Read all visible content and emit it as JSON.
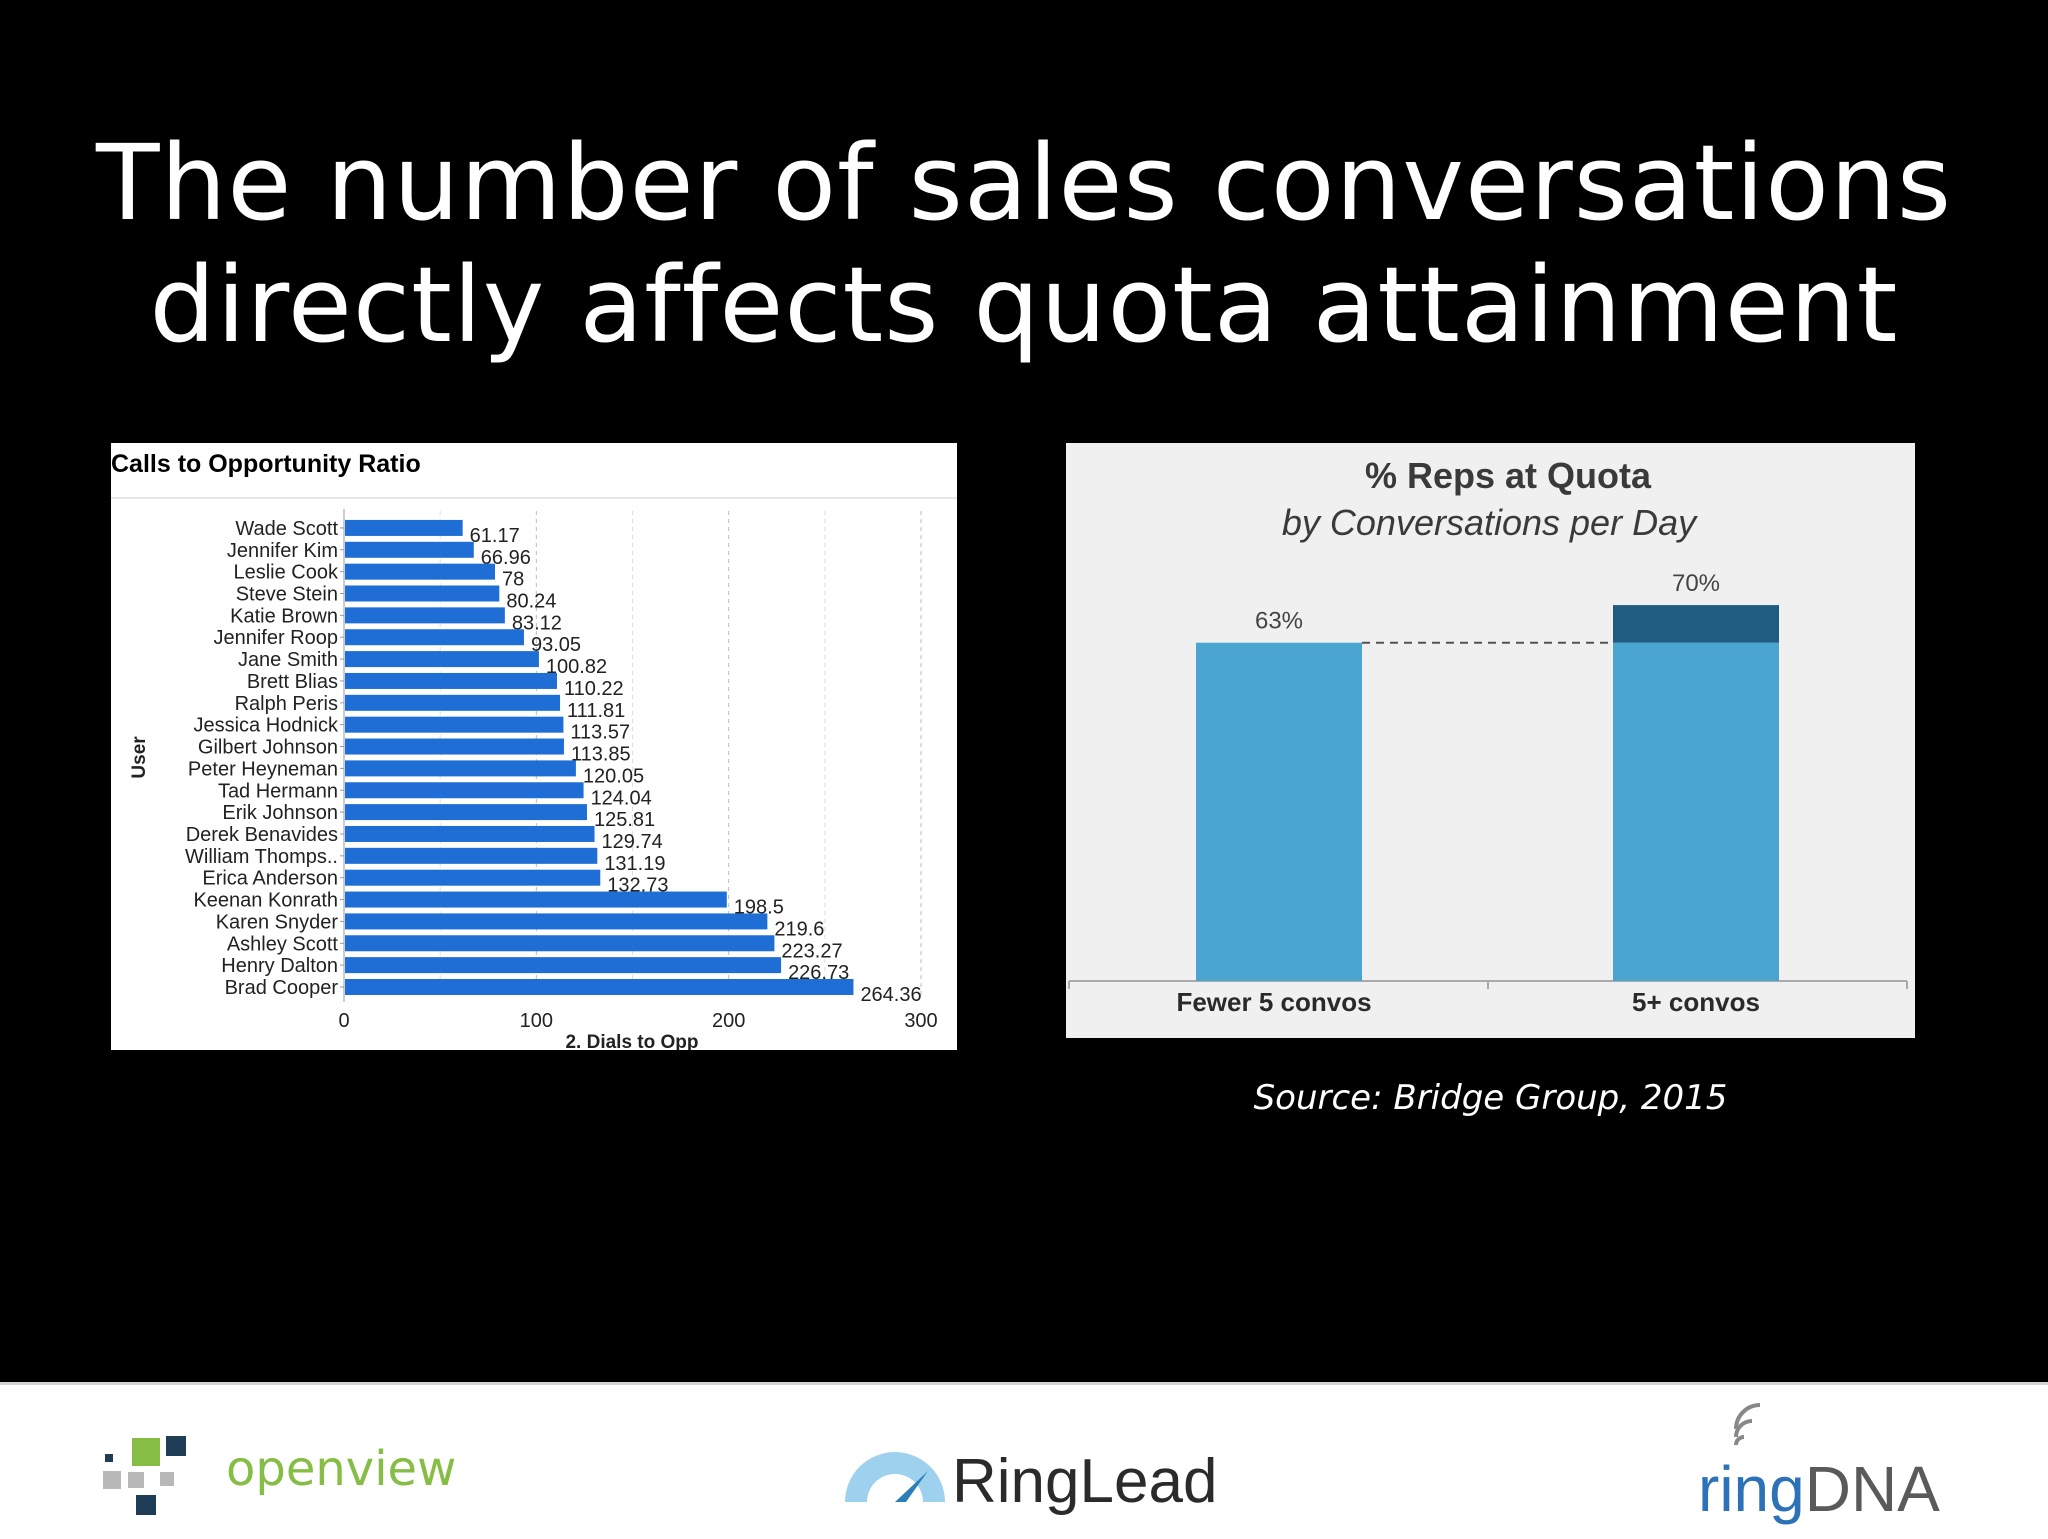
{
  "slide": {
    "title_line1": "The number of sales conversations",
    "title_line2": "directly affects quota attainment",
    "source": "Source: Bridge Group, 2015"
  },
  "chart_data": [
    {
      "type": "bar",
      "orientation": "horizontal",
      "title": "Calls to Opportunity Ratio",
      "xlabel": "2. Dials to Opp",
      "ylabel": "User",
      "xlim": [
        0,
        300
      ],
      "x_ticks": [
        "0",
        "100",
        "200",
        "300"
      ],
      "gridlines": "vertical-dashed",
      "color": "#1e6ed6",
      "categories": [
        "Wade Scott",
        "Jennifer Kim",
        "Leslie Cook",
        "Steve Stein",
        "Katie Brown",
        "Jennifer Roop",
        "Jane Smith",
        "Brett Blias",
        "Ralph Peris",
        "Jessica Hodnick",
        "Gilbert Johnson",
        "Peter Heyneman",
        "Tad Hermann",
        "Erik Johnson",
        "Derek Benavides",
        "William Thomps..",
        "Erica Anderson",
        "Keenan Konrath",
        "Karen Snyder",
        "Ashley Scott",
        "Henry Dalton",
        "Brad Cooper"
      ],
      "values": [
        61.17,
        66.96,
        78,
        80.24,
        83.12,
        93.05,
        100.82,
        110.22,
        111.81,
        113.57,
        113.85,
        120.05,
        124.04,
        125.81,
        129.74,
        131.19,
        132.73,
        198.5,
        219.6,
        223.27,
        226.73,
        264.36
      ],
      "value_labels": [
        "61.17",
        "66.96",
        "78",
        "80.24",
        "83.12",
        "93.05",
        "100.82",
        "110.22",
        "111.81",
        "113.57",
        "113.85",
        "120.05",
        "124.04",
        "125.81",
        "129.74",
        "131.19",
        "132.73",
        "198.5",
        "219.6",
        "223.27",
        "226.73",
        "264.36"
      ]
    },
    {
      "type": "bar",
      "title": "% Reps at Quota",
      "subtitle": "by Conversations per Day",
      "categories": [
        "Fewer 5 convos",
        "5+ convos"
      ],
      "values": [
        63,
        70
      ],
      "value_labels": [
        "63%",
        "70%"
      ],
      "ylim": [
        0,
        100
      ],
      "bar_color": "#4aa6d0",
      "increment_color": "#205b80",
      "reference_line": "dashed line at 63%"
    }
  ],
  "logos": {
    "openview": "openview",
    "ringlead": "RingLead",
    "ringdna_ring": "ring",
    "ringdna_dna": "DNA"
  }
}
